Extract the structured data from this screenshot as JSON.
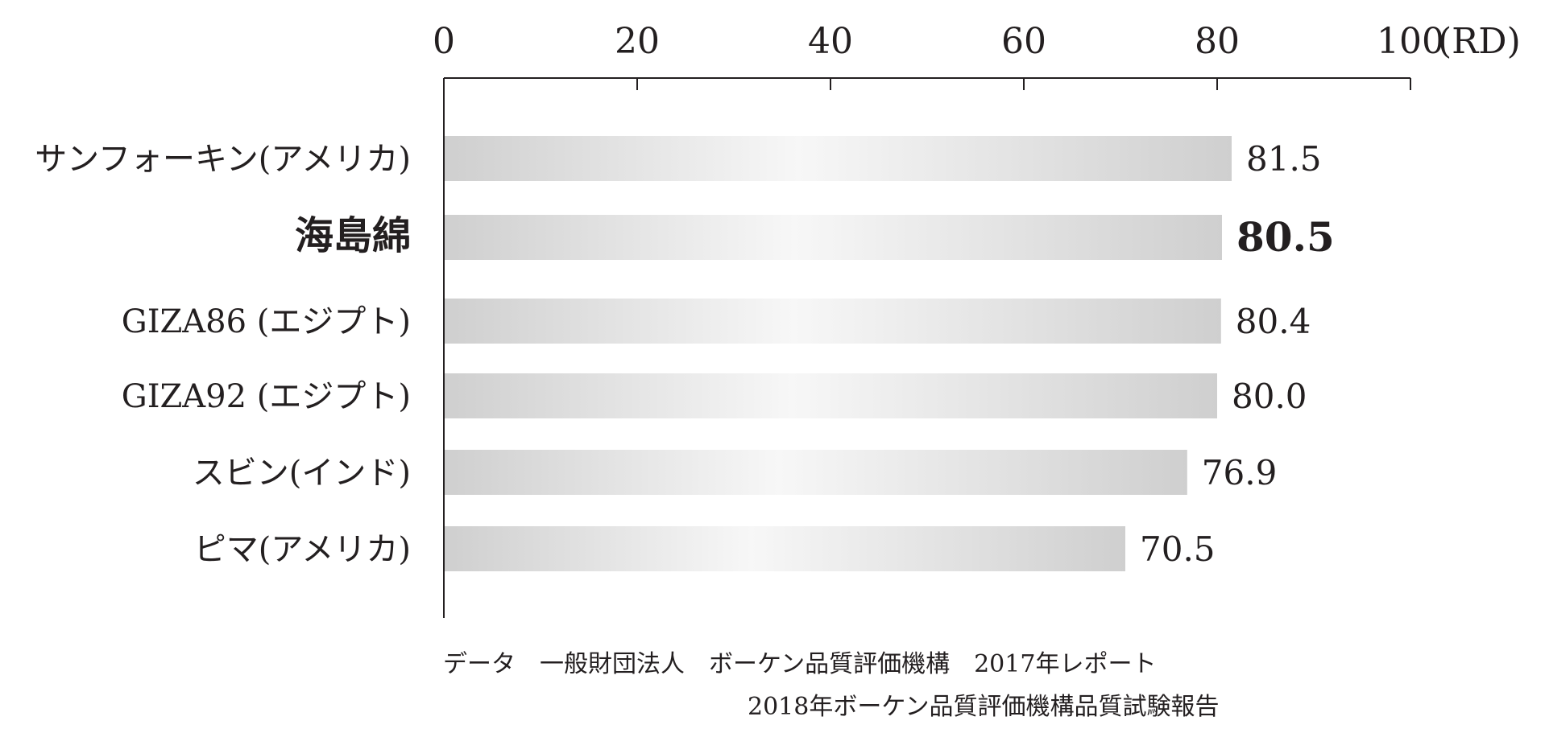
{
  "chart_data": {
    "type": "bar",
    "orientation": "horizontal",
    "unit_label": "(RD)",
    "xlim": [
      0,
      100
    ],
    "ticks": [
      "0",
      "20",
      "40",
      "60",
      "80",
      "100"
    ],
    "categories": [
      "サンフォーキン(アメリカ)",
      "海島綿",
      "GIZA86 (エジプト)",
      "GIZA92 (エジプト)",
      "スビン(インド)",
      "ピマ(アメリカ)"
    ],
    "values": [
      81.5,
      80.5,
      80.4,
      80.0,
      76.9,
      70.5
    ],
    "value_labels": [
      "81.5",
      "80.5",
      "80.4",
      "80.0",
      "76.9",
      "70.5"
    ],
    "highlight_index": 1,
    "grid": false,
    "colors": {
      "bar_dark": "#cfcfcf",
      "bar_light": "#f7f7f7",
      "axis": "#231f20"
    }
  },
  "notes": {
    "line1": "データ　一般財団法人　ボーケン品質評価機構　2017年レポート",
    "line2": "2018年ボーケン品質評価機構品質試験報告"
  }
}
